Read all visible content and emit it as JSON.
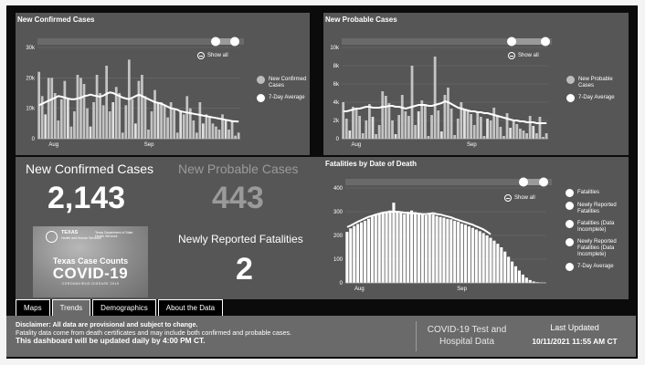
{
  "panels": {
    "confirmed": {
      "title": "New Confirmed Cases",
      "show_all": "Show all",
      "legend": [
        "New Confirmed Cases",
        "7-Day Average"
      ]
    },
    "probable": {
      "title": "New Probable Cases",
      "show_all": "Show all",
      "legend": [
        "New Probable Cases",
        "7-Day Average"
      ]
    },
    "fatalities": {
      "title": "Fatalities by Date of Death",
      "show_all": "Show all",
      "legend": [
        "Fatalities",
        "Newly Reported Fatalities",
        "Fatalities (Data Incomplete)",
        "Newly Reported Fatalities (Data Incomplete)",
        "7-Day Average"
      ]
    }
  },
  "stats": {
    "confirmed_label": "New Confirmed Cases",
    "confirmed_value": "2,143",
    "probable_label": "New Probable Cases",
    "probable_value": "443",
    "fatalities_label": "Newly Reported Fatalities",
    "fatalities_value": "2"
  },
  "logo": {
    "state": "TEXAS",
    "state_sub": "Health and Human Services",
    "department": "Texas Department of State Health Services",
    "headline": "Texas Case Counts",
    "covid": "COVID-19",
    "subline": "CORONAVIRUS DISEASE 2019"
  },
  "tabs": [
    "Maps",
    "Trends",
    "Demographics",
    "About the Data"
  ],
  "active_tab": 1,
  "footer": {
    "disclaimer_1": "Disclaimer: All data are provisional and subject to change.",
    "disclaimer_2": "Fatality data come from death certificates and may include both confirmed and probable cases.",
    "disclaimer_3": "This dashboard will be updated daily by 4:00 PM CT.",
    "hospital_link": "COVID-19 Test and Hospital Data",
    "last_updated_label": "Last Updated",
    "last_updated_value": "10/11/2021 11:55 AM CT"
  },
  "colors": {
    "frame": "#0b0b0b",
    "panel": "#565656",
    "bar": "#c4c4c4",
    "bar_light": "#ffffff",
    "avg_line": "#ffffff",
    "muted_number": "#9a9a9a"
  },
  "chart_data": [
    {
      "type": "bar",
      "title": "New Confirmed Cases",
      "x_ticks": [
        "Aug",
        "Sep"
      ],
      "y_ticks": [
        "0",
        "10k",
        "20k",
        "30k"
      ],
      "ylim": [
        0,
        30000
      ],
      "series": [
        {
          "name": "New Confirmed Cases",
          "values": [
            22000,
            14000,
            8000,
            20000,
            20000,
            15000,
            6000,
            13000,
            19000,
            13000,
            4000,
            9000,
            21000,
            20000,
            18000,
            10000,
            4000,
            12000,
            21000,
            15000,
            11000,
            24000,
            9000,
            12000,
            17000,
            15000,
            2000,
            11000,
            26000,
            13000,
            5000,
            19000,
            21000,
            14000,
            3000,
            9000,
            16000,
            12000,
            12000,
            11000,
            7000,
            12000,
            10000,
            2000,
            9000,
            8000,
            14000,
            10000,
            6000,
            2000,
            12000,
            5000,
            8000,
            7000,
            5000,
            4000,
            3000,
            8000,
            6000,
            3000,
            6000,
            1000,
            2000
          ]
        },
        {
          "name": "7-Day Average",
          "values": [
            11000,
            11500,
            12000,
            12500,
            13000,
            13500,
            14000,
            13800,
            13500,
            13200,
            13000,
            13000,
            13200,
            13500,
            14000,
            14200,
            14500,
            14200,
            14000,
            13800,
            14200,
            14800,
            15200,
            15000,
            14500,
            14000,
            13500,
            13200,
            13000,
            13500,
            14000,
            14500,
            14000,
            13500,
            13000,
            12500,
            12000,
            11800,
            11500,
            11000,
            10500,
            10000,
            9800,
            9500,
            9000,
            8800,
            8600,
            8400,
            8200,
            8000,
            7800,
            7600,
            7400,
            7200,
            7000,
            6800,
            6600,
            6400,
            6200,
            6000,
            5800,
            5700,
            5600
          ]
        }
      ]
    },
    {
      "type": "bar",
      "title": "New Probable Cases",
      "x_ticks": [
        "Aug",
        "Sep"
      ],
      "y_ticks": [
        "0",
        "2k",
        "4k",
        "6k",
        "8k",
        "10k"
      ],
      "ylim": [
        0,
        10000
      ],
      "series": [
        {
          "name": "New Probable Cases",
          "values": [
            4000,
            2200,
            900,
            3500,
            3200,
            2500,
            600,
            2000,
            3800,
            2400,
            500,
            1500,
            5200,
            4700,
            3900,
            2000,
            500,
            2600,
            4800,
            3000,
            2500,
            8000,
            1500,
            3000,
            4200,
            3600,
            300,
            2600,
            9000,
            3100,
            800,
            4800,
            5600,
            3300,
            400,
            2200,
            4000,
            3200,
            3100,
            2700,
            1500,
            3000,
            2400,
            300,
            2200,
            2000,
            3400,
            2500,
            1300,
            300,
            2800,
            1200,
            1900,
            1600,
            1100,
            900,
            600,
            2500,
            1400,
            600,
            2400,
            200,
            600
          ]
        },
        {
          "name": "7-Day Average",
          "values": [
            3000,
            3000,
            3100,
            3200,
            3300,
            3300,
            3400,
            3500,
            3500,
            3400,
            3400,
            3400,
            3500,
            3500,
            3600,
            3600,
            3500,
            3500,
            3400,
            3300,
            3400,
            3500,
            3600,
            3700,
            3700,
            3700,
            3600,
            3600,
            3700,
            3800,
            3900,
            4100,
            4000,
            3800,
            3600,
            3400,
            3300,
            3200,
            3100,
            3000,
            3000,
            2900,
            2900,
            2800,
            2800,
            2700,
            2600,
            2500,
            2400,
            2300,
            2200,
            2100,
            2000,
            2000,
            1900,
            1900,
            1800,
            1800,
            1800,
            1700,
            1700,
            1700,
            1700
          ]
        }
      ]
    },
    {
      "type": "bar",
      "title": "Fatalities by Date of Death",
      "x_ticks": [
        "Aug",
        "Sep"
      ],
      "y_ticks": [
        "0",
        "100",
        "200",
        "300",
        "400"
      ],
      "ylim": [
        0,
        400
      ],
      "series": [
        {
          "name": "Fatalities",
          "values": [
            215,
            230,
            240,
            248,
            255,
            262,
            270,
            280,
            285,
            290,
            295,
            300,
            305,
            308,
            300,
            295,
            290,
            300,
            305,
            298,
            292,
            288,
            285,
            290,
            288,
            282,
            278,
            275,
            270,
            268,
            262,
            258,
            250,
            245,
            238,
            232,
            225,
            218,
            210,
            200,
            190,
            178,
            165,
            150,
            132,
            110,
            90,
            70,
            52,
            35,
            22,
            12,
            6,
            3,
            2,
            1
          ]
        },
        {
          "name": "Newly Reported Fatalities",
          "values": [
            0,
            0,
            0,
            0,
            0,
            0,
            0,
            0,
            0,
            0,
            0,
            0,
            0,
            30,
            0,
            0,
            0,
            0,
            0,
            0,
            0,
            0,
            0,
            0,
            0,
            0,
            0,
            0,
            0,
            0,
            0,
            0,
            0,
            0,
            0,
            0,
            0,
            0,
            0,
            0,
            0,
            0,
            0,
            0,
            0,
            0,
            0,
            0,
            0,
            0,
            0,
            0,
            0,
            0,
            0,
            0
          ]
        },
        {
          "name": "7-Day Average",
          "values": [
            235,
            242,
            250,
            258,
            265,
            272,
            278,
            283,
            288,
            292,
            296,
            298,
            300,
            300,
            300,
            298,
            296,
            294,
            294,
            293,
            292,
            290,
            290,
            292,
            294,
            290,
            288,
            284,
            280,
            276,
            270,
            265,
            260,
            255,
            250,
            245,
            238,
            232,
            225,
            215,
            205
          ]
        }
      ]
    }
  ]
}
